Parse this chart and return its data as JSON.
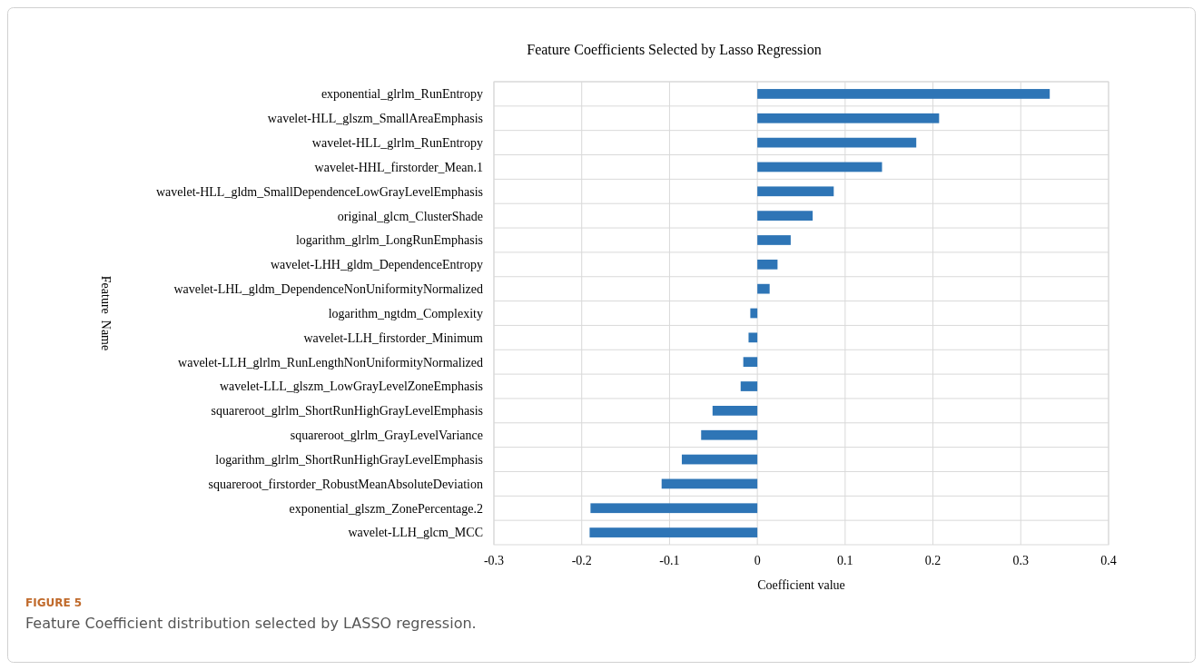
{
  "chart_data": {
    "type": "bar",
    "orientation": "horizontal",
    "title": "Feature Coefficients Selected by Lasso Regression",
    "xlabel": "Coefficient value",
    "ylabel": "Feature  Name",
    "categories": [
      "exponential_glrlm_RunEntropy",
      "wavelet-HLL_glszm_SmallAreaEmphasis",
      "wavelet-HLL_glrlm_RunEntropy",
      "wavelet-HHL_firstorder_Mean.1",
      "wavelet-HLL_gldm_SmallDependenceLowGrayLevelEmphasis",
      "original_glcm_ClusterShade",
      "logarithm_glrlm_LongRunEmphasis",
      "wavelet-LHH_gldm_DependenceEntropy",
      "wavelet-LHL_gldm_DependenceNonUniformityNormalized",
      "logarithm_ngtdm_Complexity",
      "wavelet-LLH_firstorder_Minimum",
      "wavelet-LLH_glrlm_RunLengthNonUniformityNormalized",
      "wavelet-LLL_glszm_LowGrayLevelZoneEmphasis",
      "squareroot_glrlm_ShortRunHighGrayLevelEmphasis",
      "squareroot_glrlm_GrayLevelVariance",
      "logarithm_glrlm_ShortRunHighGrayLevelEmphasis",
      "squareroot_firstorder_RobustMeanAbsoluteDeviation",
      "exponential_glszm_ZonePercentage.2",
      "wavelet-LLH_glcm_MCC"
    ],
    "values": [
      0.333,
      0.207,
      0.181,
      0.142,
      0.087,
      0.063,
      0.038,
      0.023,
      0.014,
      -0.008,
      -0.01,
      -0.016,
      -0.019,
      -0.051,
      -0.064,
      -0.086,
      -0.109,
      -0.19,
      -0.191
    ],
    "color": "#2e75b6",
    "xlim": [
      -0.3,
      0.4
    ],
    "xticks": [
      -0.3,
      -0.2,
      -0.1,
      0,
      0.1,
      0.2,
      0.3,
      0.4
    ],
    "grid": true,
    "annotations": [
      "FIGURE 5",
      "Feature Coefficient distribution selected by LASSO regression."
    ]
  }
}
